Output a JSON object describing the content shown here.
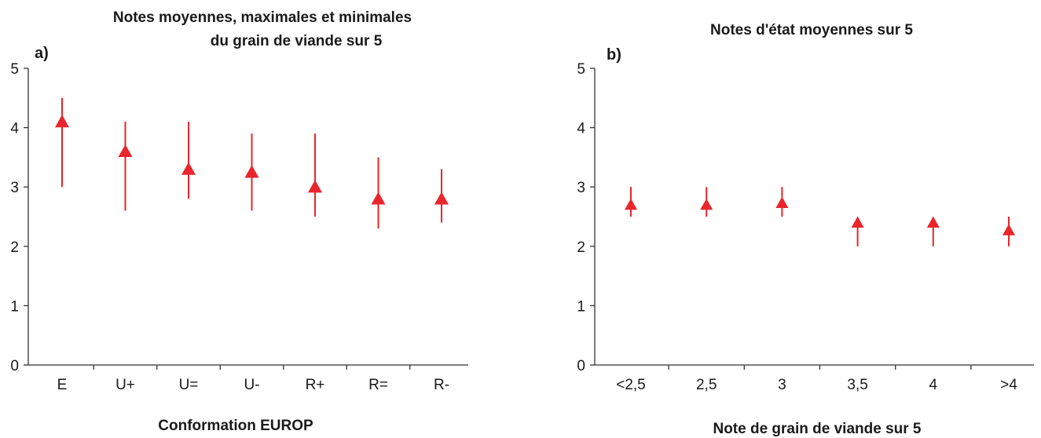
{
  "chart_data": [
    {
      "type": "scatter",
      "panel_label": "a)",
      "title": [
        "Notes moyennes, maximales et minimales",
        "du grain de viande sur 5"
      ],
      "xlabel": "Conformation EUROP",
      "ylabel": "",
      "categories": [
        "E",
        "U+",
        "U=",
        "U-",
        "R+",
        "R=",
        "R-"
      ],
      "ylim": [
        0,
        5
      ],
      "yticks": [
        "0",
        "1",
        "2",
        "3",
        "4",
        "5"
      ],
      "grid": false,
      "color": "#e8262b",
      "marker": "triangle",
      "series": [
        {
          "mean": [
            4.1,
            3.6,
            3.3,
            3.25,
            3.0,
            2.8,
            2.8
          ],
          "max": [
            4.5,
            4.1,
            4.1,
            3.9,
            3.9,
            3.5,
            3.3
          ],
          "min": [
            3.0,
            2.6,
            2.8,
            2.6,
            2.5,
            2.3,
            2.4
          ]
        }
      ]
    },
    {
      "type": "scatter",
      "panel_label": "b)",
      "title": [
        "Notes d'état moyennes sur 5"
      ],
      "xlabel": "Note de grain de viande sur 5",
      "ylabel": "",
      "categories": [
        "<2,5",
        "2,5",
        "3",
        "3,5",
        "4",
        ">4"
      ],
      "ylim": [
        0,
        5
      ],
      "yticks": [
        "0",
        "1",
        "2",
        "3",
        "4",
        "5"
      ],
      "grid": false,
      "color": "#e8262b",
      "marker": "triangle",
      "series": [
        {
          "mean": [
            2.7,
            2.7,
            2.73,
            2.4,
            2.4,
            2.27
          ],
          "max": [
            3.0,
            3.0,
            3.0,
            2.4,
            2.4,
            2.5
          ],
          "min": [
            2.5,
            2.5,
            2.5,
            2.0,
            2.0,
            2.0
          ]
        }
      ]
    }
  ]
}
